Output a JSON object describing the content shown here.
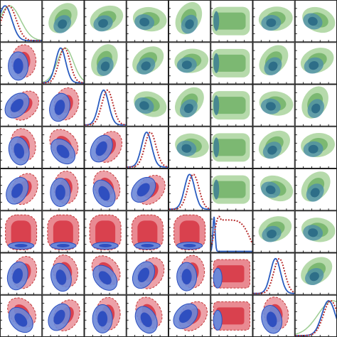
{
  "chart_data": {
    "type": "corner"
  }
}
